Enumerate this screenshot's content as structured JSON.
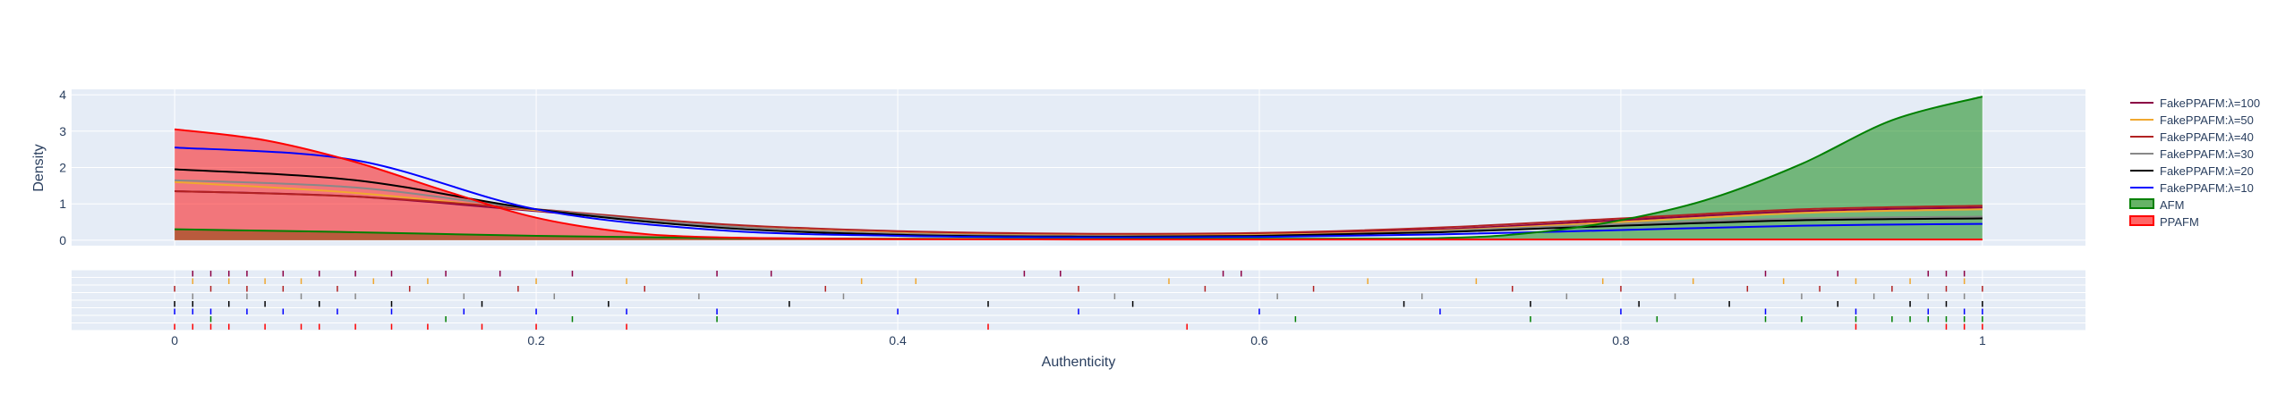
{
  "chart_data": {
    "type": "area",
    "xlabel": "Authenticity",
    "ylabel": "Density",
    "xlim": [
      -0.057,
      1.057
    ],
    "ylim": [
      -0.15,
      4.15
    ],
    "x_ticks": [
      "0",
      "0.2",
      "0.4",
      "0.6",
      "0.8",
      "1"
    ],
    "y_ticks": [
      "0",
      "1",
      "2",
      "3",
      "4"
    ],
    "legend_position": "right",
    "series": [
      {
        "name": "FakePPAFM:λ=100",
        "color": "#8b0045",
        "kind": "line",
        "x": [
          0,
          0.1,
          0.2,
          0.3,
          0.4,
          0.5,
          0.6,
          0.7,
          0.8,
          0.9,
          1
        ],
        "y": [
          1.35,
          1.2,
          0.8,
          0.4,
          0.2,
          0.15,
          0.17,
          0.3,
          0.55,
          0.8,
          0.9
        ]
      },
      {
        "name": "FakePPAFM:λ=50",
        "color": "#f0a830",
        "kind": "line",
        "x": [
          0,
          0.1,
          0.2,
          0.3,
          0.4,
          0.5,
          0.6,
          0.7,
          0.8,
          0.9,
          1
        ],
        "y": [
          1.6,
          1.3,
          0.82,
          0.4,
          0.2,
          0.14,
          0.15,
          0.27,
          0.5,
          0.75,
          0.85
        ]
      },
      {
        "name": "FakePPAFM:λ=40",
        "color": "#b22222",
        "kind": "line",
        "x": [
          0,
          0.1,
          0.2,
          0.3,
          0.4,
          0.5,
          0.6,
          0.7,
          0.8,
          0.9,
          1
        ],
        "y": [
          1.35,
          1.2,
          0.85,
          0.45,
          0.25,
          0.18,
          0.2,
          0.35,
          0.6,
          0.85,
          0.95
        ]
      },
      {
        "name": "FakePPAFM:λ=30",
        "color": "#888888",
        "kind": "line",
        "x": [
          0,
          0.1,
          0.2,
          0.3,
          0.4,
          0.5,
          0.6,
          0.7,
          0.8,
          0.9,
          1
        ],
        "y": [
          1.65,
          1.45,
          0.85,
          0.4,
          0.18,
          0.12,
          0.13,
          0.25,
          0.45,
          0.6,
          0.65
        ]
      },
      {
        "name": "FakePPAFM:λ=20",
        "color": "#000000",
        "kind": "line",
        "x": [
          0,
          0.1,
          0.2,
          0.3,
          0.4,
          0.5,
          0.6,
          0.7,
          0.8,
          0.9,
          1
        ],
        "y": [
          1.95,
          1.65,
          0.85,
          0.35,
          0.15,
          0.1,
          0.12,
          0.22,
          0.4,
          0.55,
          0.6
        ]
      },
      {
        "name": "FakePPAFM:λ=10",
        "color": "#0000ff",
        "kind": "line",
        "x": [
          0,
          0.1,
          0.2,
          0.3,
          0.4,
          0.5,
          0.6,
          0.7,
          0.8,
          0.9,
          1
        ],
        "y": [
          2.55,
          2.2,
          0.85,
          0.28,
          0.12,
          0.08,
          0.09,
          0.16,
          0.28,
          0.4,
          0.45
        ]
      },
      {
        "name": "AFM",
        "color": "#008000",
        "kind": "area",
        "x": [
          0,
          0.1,
          0.2,
          0.3,
          0.4,
          0.5,
          0.6,
          0.7,
          0.75,
          0.8,
          0.85,
          0.9,
          0.95,
          1
        ],
        "y": [
          0.3,
          0.22,
          0.12,
          0.06,
          0.04,
          0.03,
          0.04,
          0.06,
          0.2,
          0.55,
          1.15,
          2.1,
          3.3,
          3.95
        ]
      },
      {
        "name": "PPAFM",
        "color": "#ff0000",
        "kind": "area",
        "x": [
          0,
          0.05,
          0.1,
          0.15,
          0.2,
          0.25,
          0.3,
          0.4,
          0.5,
          0.6,
          0.7,
          0.8,
          0.9,
          1
        ],
        "y": [
          3.05,
          2.75,
          2.15,
          1.35,
          0.62,
          0.22,
          0.08,
          0.03,
          0.02,
          0.02,
          0.02,
          0.02,
          0.02,
          0.02
        ]
      }
    ],
    "rug_order": [
      "FakePPAFM:λ=100",
      "FakePPAFM:λ=50",
      "FakePPAFM:λ=40",
      "FakePPAFM:λ=30",
      "FakePPAFM:λ=20",
      "FakePPAFM:λ=10",
      "AFM",
      "PPAFM"
    ],
    "rug_samples": {
      "FakePPAFM:λ=100": [
        0.01,
        0.02,
        0.03,
        0.04,
        0.06,
        0.08,
        0.1,
        0.12,
        0.15,
        0.18,
        0.22,
        0.3,
        0.33,
        0.47,
        0.49,
        0.58,
        0.59,
        0.88,
        0.92,
        0.97,
        0.98,
        0.99
      ],
      "FakePPAFM:λ=50": [
        0.01,
        0.03,
        0.05,
        0.07,
        0.11,
        0.14,
        0.2,
        0.25,
        0.38,
        0.41,
        0.55,
        0.66,
        0.72,
        0.79,
        0.84,
        0.89,
        0.93,
        0.96,
        0.99
      ],
      "FakePPAFM:λ=40": [
        0.0,
        0.02,
        0.04,
        0.06,
        0.09,
        0.13,
        0.19,
        0.26,
        0.36,
        0.5,
        0.57,
        0.63,
        0.74,
        0.8,
        0.87,
        0.91,
        0.95,
        0.98,
        1.0
      ],
      "FakePPAFM:λ=30": [
        0.01,
        0.04,
        0.07,
        0.1,
        0.16,
        0.21,
        0.29,
        0.37,
        0.52,
        0.61,
        0.69,
        0.77,
        0.83,
        0.9,
        0.94,
        0.97,
        0.99
      ],
      "FakePPAFM:λ=20": [
        0.0,
        0.01,
        0.03,
        0.05,
        0.08,
        0.12,
        0.17,
        0.24,
        0.34,
        0.45,
        0.53,
        0.68,
        0.75,
        0.81,
        0.86,
        0.92,
        0.96,
        0.98,
        1.0
      ],
      "FakePPAFM:λ=10": [
        0.0,
        0.01,
        0.02,
        0.04,
        0.06,
        0.09,
        0.12,
        0.16,
        0.2,
        0.25,
        0.3,
        0.4,
        0.5,
        0.6,
        0.7,
        0.8,
        0.88,
        0.93,
        0.97,
        0.99,
        1.0
      ],
      "AFM": [
        0.02,
        0.15,
        0.22,
        0.3,
        0.62,
        0.75,
        0.82,
        0.88,
        0.9,
        0.93,
        0.95,
        0.96,
        0.97,
        0.98,
        0.99,
        1.0
      ],
      "PPAFM": [
        0.0,
        0.01,
        0.02,
        0.03,
        0.05,
        0.07,
        0.08,
        0.1,
        0.12,
        0.14,
        0.17,
        0.2,
        0.25,
        0.45,
        0.56,
        0.93,
        0.98,
        0.99,
        1.0
      ]
    }
  }
}
